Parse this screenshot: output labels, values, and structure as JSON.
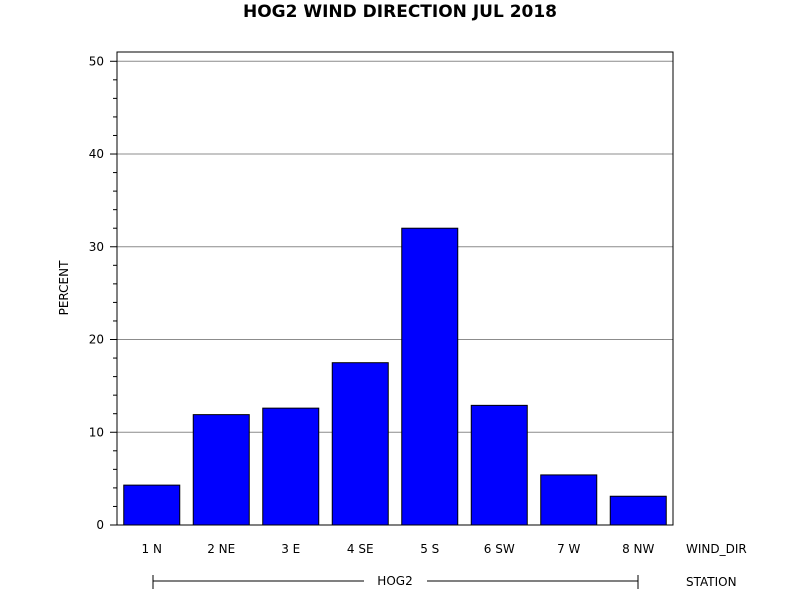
{
  "chart_data": {
    "type": "bar",
    "title": "HOG2 WIND DIRECTION JUL 2018",
    "ylabel": "PERCENT",
    "categories": [
      "1 N",
      "2 NE",
      "3 E",
      "4 SE",
      "5 S",
      "6 SW",
      "7 W",
      "8 NW"
    ],
    "values": [
      4.3,
      11.9,
      12.6,
      17.5,
      32.0,
      12.9,
      5.4,
      3.1
    ],
    "ylim": [
      0,
      51
    ],
    "yticks": [
      0,
      10,
      20,
      30,
      40,
      50
    ],
    "grid": true,
    "bar_color": "#0000FF",
    "category_axis_name": "WIND_DIR",
    "group_axis_name": "STATION",
    "group_label": "HOG2"
  }
}
